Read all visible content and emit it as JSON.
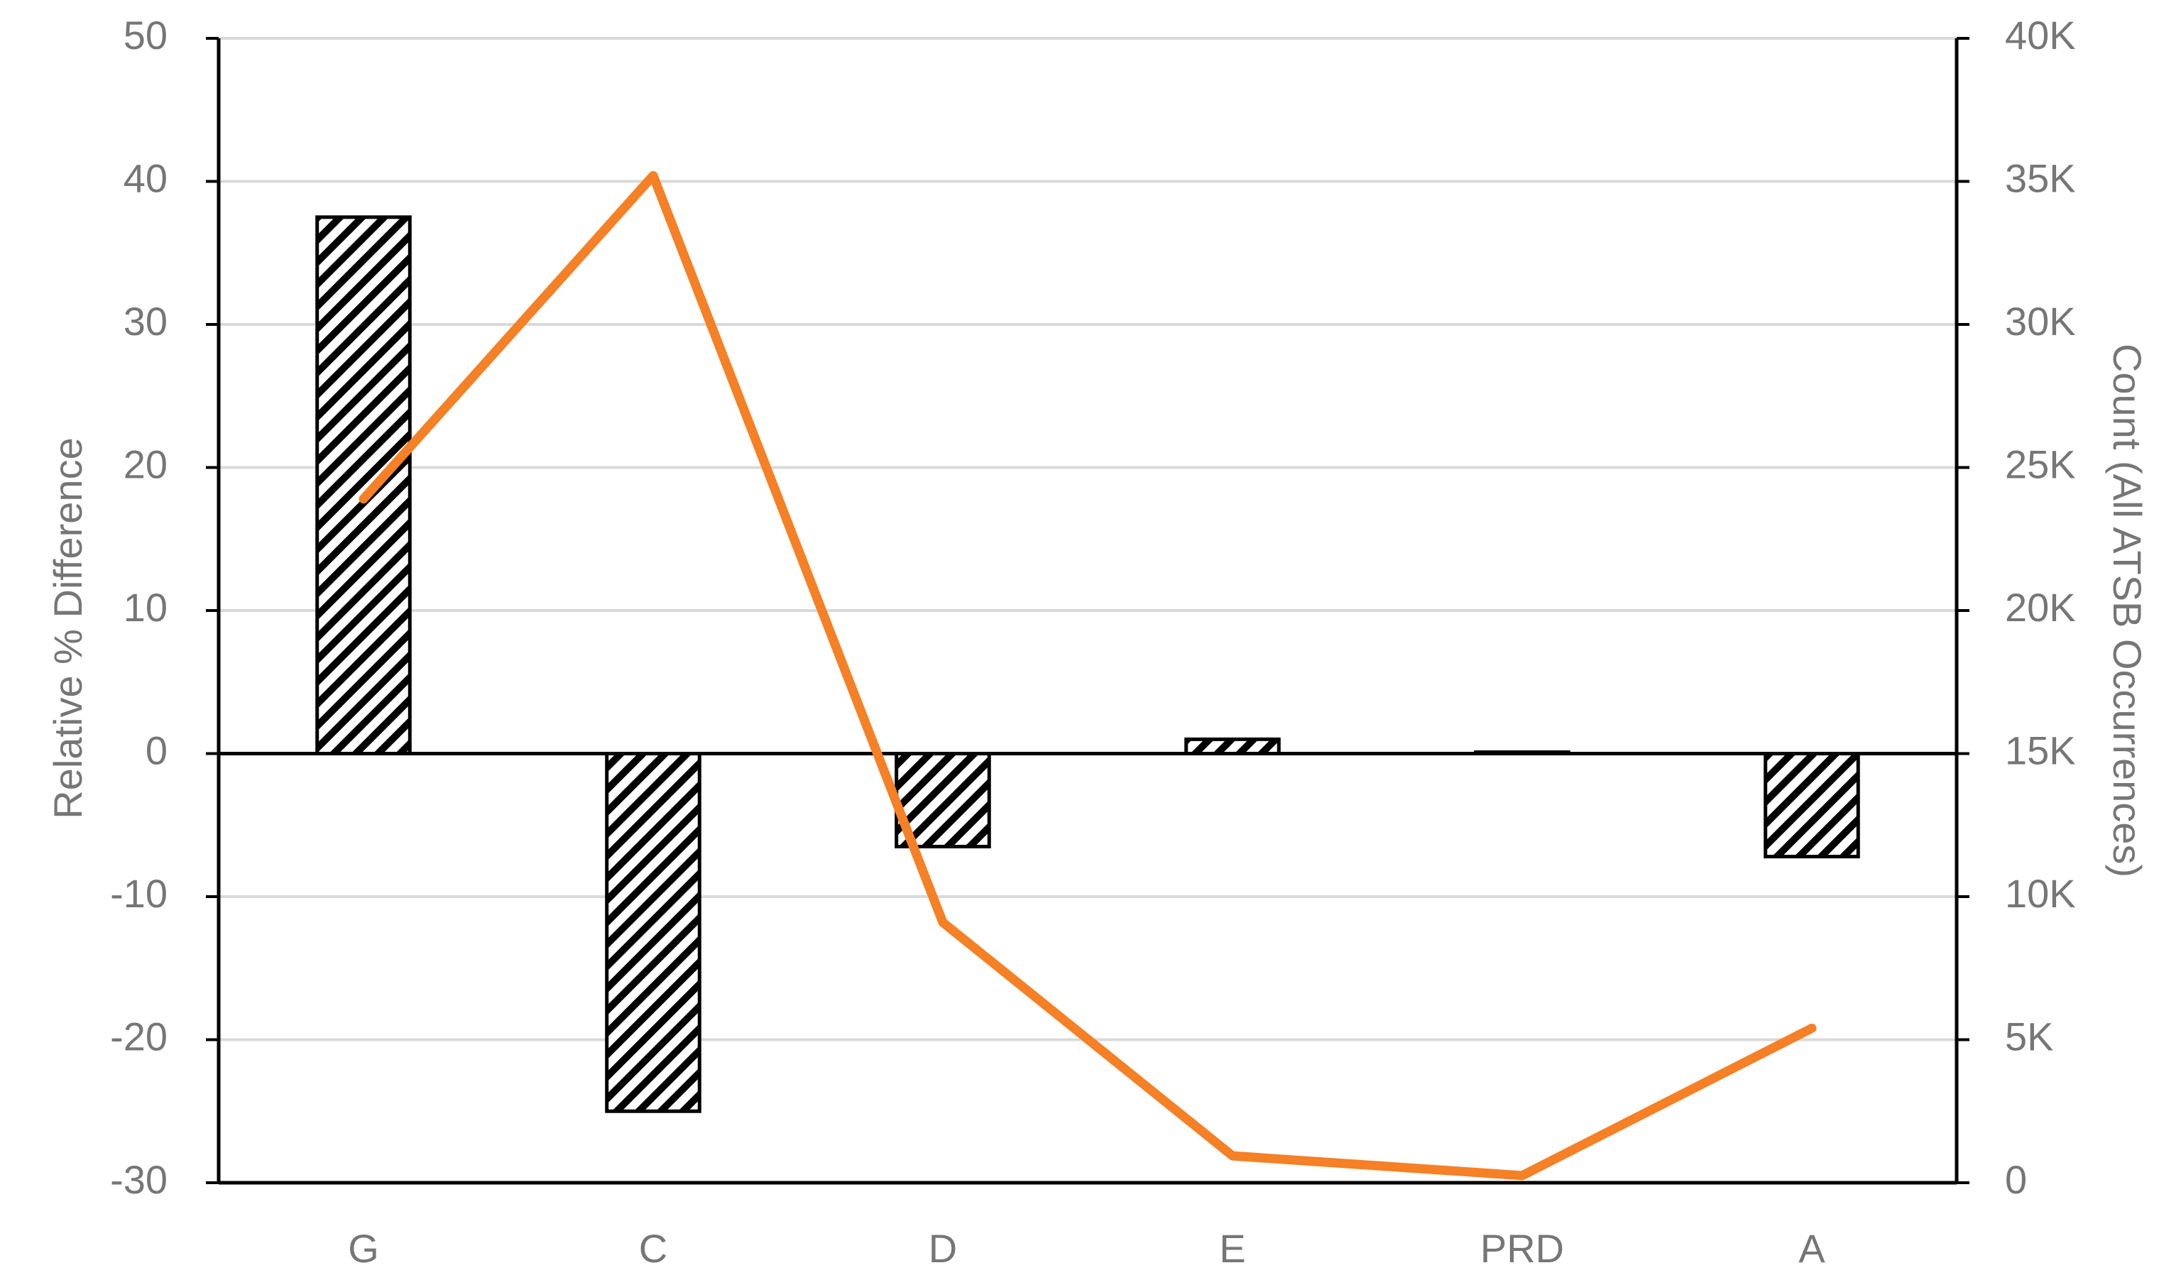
{
  "chart_data": {
    "type": "bar-line",
    "categories": [
      "G",
      "C",
      "D",
      "E",
      "PRD",
      "A"
    ],
    "y_label": "Relative % Difference",
    "y2_label": "Count (All ATSB Occurrences)",
    "ylim": [
      -30,
      50
    ],
    "yticks": [
      -30,
      -20,
      -10,
      0,
      10,
      20,
      30,
      40,
      50
    ],
    "y2lim": [
      0,
      40000
    ],
    "y2ticks": [
      0,
      {
        "value": 5000,
        "label": "5K"
      },
      {
        "value": 10000,
        "label": "10K"
      },
      {
        "value": 15000,
        "label": "15K"
      },
      {
        "value": 20000,
        "label": "20K"
      },
      {
        "value": 25000,
        "label": "25K"
      },
      {
        "value": 30000,
        "label": "30K"
      },
      {
        "value": 35000,
        "label": "35K"
      },
      {
        "value": 40000,
        "label": "40K"
      }
    ],
    "grid": true,
    "series": [
      {
        "type": "bar",
        "color": "#000000",
        "pattern": "diagonal-hatch",
        "values": [
          37.5,
          -25,
          -6.5,
          1,
          0.1,
          -7.2
        ]
      },
      {
        "type": "line",
        "axis": "y2",
        "color": "#f58025",
        "values": [
          23900,
          35200,
          9100,
          940,
          250,
          5400
        ]
      }
    ]
  }
}
